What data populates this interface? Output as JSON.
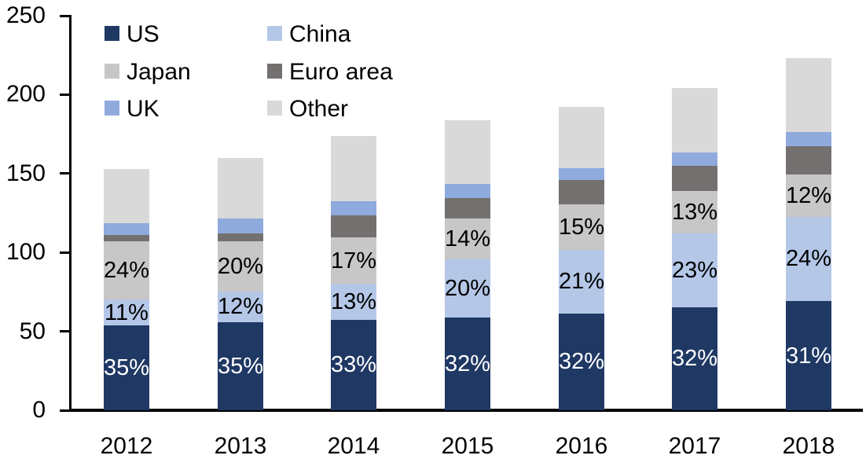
{
  "chart_data": {
    "type": "bar",
    "stacked": true,
    "title": "",
    "xlabel": "",
    "ylabel": "",
    "categories": [
      "2012",
      "2013",
      "2014",
      "2015",
      "2016",
      "2017",
      "2018"
    ],
    "totals": [
      153,
      160,
      174,
      184,
      192,
      204,
      223
    ],
    "series": [
      {
        "name": "US",
        "color": "#1f3864",
        "label_color": "#ffffff",
        "share_pct": [
          35,
          35,
          33,
          32,
          32,
          32,
          31
        ],
        "values": [
          53.6,
          56.0,
          57.4,
          58.9,
          61.4,
          65.3,
          69.1
        ],
        "labels": [
          "35%",
          "35%",
          "33%",
          "32%",
          "32%",
          "32%",
          "31%"
        ]
      },
      {
        "name": "China",
        "color": "#b4c7e7",
        "label_color": "#000000",
        "share_pct": [
          11,
          12,
          13,
          20,
          21,
          23,
          24
        ],
        "values": [
          16.8,
          19.2,
          22.6,
          36.8,
          40.3,
          46.9,
          53.5
        ],
        "labels": [
          "11%",
          "12%",
          "13%",
          "20%",
          "21%",
          "23%",
          "24%"
        ]
      },
      {
        "name": "Japan",
        "color": "#c7c7c7",
        "label_color": "#000000",
        "share_pct": [
          24,
          20,
          17,
          14,
          15,
          13,
          12
        ],
        "values": [
          36.7,
          32.0,
          29.6,
          25.8,
          28.8,
          26.5,
          26.8
        ],
        "labels": [
          "24%",
          "20%",
          "17%",
          "14%",
          "15%",
          "13%",
          "12%"
        ]
      },
      {
        "name": "Euro area",
        "color": "#747070",
        "label_color": null,
        "share_pct": [
          2.5,
          3,
          8,
          7,
          8,
          8,
          8
        ],
        "values": [
          3.8,
          4.8,
          13.9,
          12.9,
          15.4,
          16.3,
          17.8
        ],
        "labels": null
      },
      {
        "name": "UK",
        "color": "#8faadc",
        "label_color": null,
        "share_pct": [
          5,
          6,
          5,
          5,
          4,
          4,
          4
        ],
        "values": [
          7.7,
          9.6,
          8.7,
          9.2,
          7.7,
          8.2,
          8.9
        ],
        "labels": null
      },
      {
        "name": "Other",
        "color": "#d9d9d9",
        "label_color": null,
        "share_pct": [
          22.5,
          24,
          24,
          22,
          20,
          20,
          21
        ],
        "values": [
          34.4,
          38.4,
          41.8,
          40.5,
          38.4,
          40.8,
          46.8
        ],
        "labels": null
      }
    ],
    "ylim": [
      0,
      250
    ],
    "yticks": [
      "0",
      "50",
      "100",
      "150",
      "200",
      "250"
    ],
    "ytick_values": [
      0,
      50,
      100,
      150,
      200,
      250
    ],
    "legend_position": "top-left",
    "legend_columns": 2,
    "grid": false,
    "axis_color": "#000000",
    "background_color": "#ffffff"
  }
}
